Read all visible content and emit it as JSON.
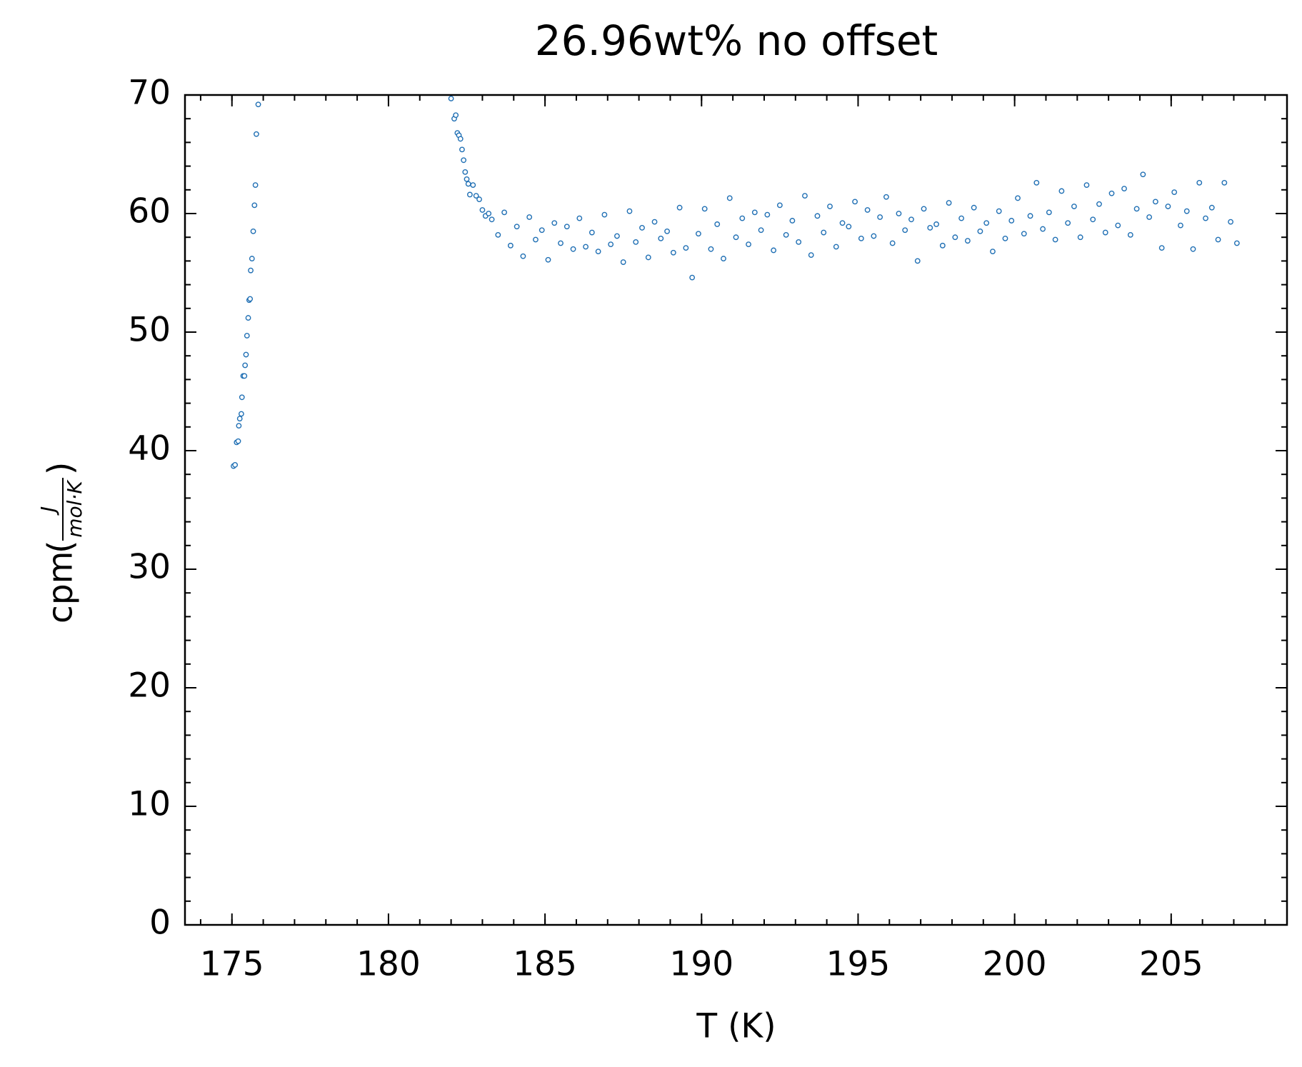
{
  "chart_data": {
    "type": "scatter",
    "title": "26.96wt% no offset",
    "x_label": "T (K)",
    "y_label": "cpm",
    "y_unit_numerator": "J",
    "y_unit_denominator": "mol·K",
    "xlim": [
      173.5,
      208.7
    ],
    "ylim": [
      0,
      70
    ],
    "xticks": [
      175,
      180,
      185,
      190,
      195,
      200,
      205
    ],
    "yticks": [
      0,
      10,
      20,
      30,
      40,
      50,
      60,
      70
    ],
    "xminorticks": [
      174,
      175,
      176,
      177,
      178,
      179,
      180,
      181,
      182,
      183,
      184,
      185,
      186,
      187,
      188,
      189,
      190,
      191,
      192,
      193,
      194,
      195,
      196,
      197,
      198,
      199,
      200,
      201,
      202,
      203,
      204,
      205,
      206,
      207,
      208
    ],
    "yminorticks": [
      0,
      2,
      4,
      6,
      8,
      10,
      12,
      14,
      16,
      18,
      20,
      22,
      24,
      26,
      28,
      30,
      32,
      34,
      36,
      38,
      40,
      42,
      44,
      46,
      48,
      50,
      52,
      54,
      56,
      58,
      60,
      62,
      64,
      66,
      68,
      70
    ],
    "series": [
      {
        "color": "#1f6fb4",
        "x": [
          175.05,
          175.1,
          175.15,
          175.2,
          175.22,
          175.25,
          175.3,
          175.32,
          175.36,
          175.4,
          175.42,
          175.45,
          175.48,
          175.52,
          175.55,
          175.58,
          175.6,
          175.64,
          175.68,
          175.72,
          175.75,
          175.78,
          175.84,
          182.0,
          182.1,
          182.15,
          182.2,
          182.25,
          182.3,
          182.35,
          182.4,
          182.45,
          182.5,
          182.55,
          182.6,
          182.7,
          182.8,
          182.9,
          183.0,
          183.1,
          183.2,
          183.3,
          183.5,
          183.7,
          183.9,
          184.1,
          184.3,
          184.5,
          184.7,
          184.9,
          185.1,
          185.3,
          185.5,
          185.7,
          185.9,
          186.1,
          186.3,
          186.5,
          186.7,
          186.9,
          187.1,
          187.3,
          187.5,
          187.7,
          187.9,
          188.1,
          188.3,
          188.5,
          188.7,
          188.9,
          189.1,
          189.3,
          189.5,
          189.7,
          189.9,
          190.1,
          190.3,
          190.5,
          190.7,
          190.9,
          191.1,
          191.3,
          191.5,
          191.7,
          191.9,
          192.1,
          192.3,
          192.5,
          192.7,
          192.9,
          193.1,
          193.3,
          193.5,
          193.7,
          193.9,
          194.1,
          194.3,
          194.5,
          194.7,
          194.9,
          195.1,
          195.3,
          195.5,
          195.7,
          195.9,
          196.1,
          196.3,
          196.5,
          196.7,
          196.9,
          197.1,
          197.3,
          197.5,
          197.7,
          197.9,
          198.1,
          198.3,
          198.5,
          198.7,
          198.9,
          199.1,
          199.3,
          199.5,
          199.7,
          199.9,
          200.1,
          200.3,
          200.5,
          200.7,
          200.9,
          201.1,
          201.3,
          201.5,
          201.7,
          201.9,
          202.1,
          202.3,
          202.5,
          202.7,
          202.9,
          203.1,
          203.3,
          203.5,
          203.7,
          203.9,
          204.1,
          204.3,
          204.5,
          204.7,
          204.9,
          205.1,
          205.3,
          205.5,
          205.7,
          205.9,
          206.1,
          206.3,
          206.5,
          206.7,
          206.9,
          207.1
        ],
        "values": [
          38.7,
          38.8,
          40.7,
          40.8,
          42.1,
          42.7,
          43.1,
          44.5,
          46.3,
          46.3,
          47.2,
          48.1,
          49.7,
          51.2,
          52.7,
          52.8,
          55.2,
          56.2,
          58.5,
          60.7,
          62.4,
          66.7,
          69.2,
          69.7,
          68.0,
          68.3,
          66.8,
          66.6,
          66.3,
          65.4,
          64.5,
          63.5,
          62.9,
          62.5,
          61.6,
          62.4,
          61.5,
          61.2,
          60.3,
          59.8,
          60.0,
          59.5,
          58.2,
          60.1,
          57.3,
          58.9,
          56.4,
          59.7,
          57.8,
          58.6,
          56.1,
          59.2,
          57.5,
          58.9,
          57.0,
          59.6,
          57.2,
          58.4,
          56.8,
          59.9,
          57.4,
          58.1,
          55.9,
          60.2,
          57.6,
          58.8,
          56.3,
          59.3,
          57.9,
          58.5,
          56.7,
          60.5,
          57.1,
          54.6,
          58.3,
          60.4,
          57.0,
          59.1,
          56.2,
          61.3,
          58.0,
          59.6,
          57.4,
          60.1,
          58.6,
          59.9,
          56.9,
          60.7,
          58.2,
          59.4,
          57.6,
          61.5,
          56.5,
          59.8,
          58.4,
          60.6,
          57.2,
          59.2,
          58.9,
          61.0,
          57.9,
          60.3,
          58.1,
          59.7,
          61.4,
          57.5,
          60.0,
          58.6,
          59.5,
          56.0,
          60.4,
          58.8,
          59.1,
          57.3,
          60.9,
          58.0,
          59.6,
          57.7,
          60.5,
          58.5,
          59.2,
          56.8,
          60.2,
          57.9,
          59.4,
          61.3,
          58.3,
          59.8,
          62.6,
          58.7,
          60.1,
          57.8,
          61.9,
          59.2,
          60.6,
          58.0,
          62.4,
          59.5,
          60.8,
          58.4,
          61.7,
          59.0,
          62.1,
          58.2,
          60.4,
          63.3,
          59.7,
          61.0,
          57.1,
          60.6,
          61.8,
          59.0,
          60.2,
          57.0,
          62.6,
          59.6,
          60.5,
          57.8,
          62.6,
          59.3,
          57.5
        ]
      }
    ]
  }
}
